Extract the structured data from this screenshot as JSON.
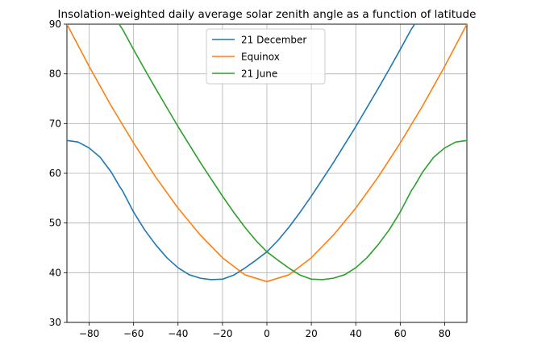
{
  "chart_data": {
    "type": "line",
    "title": "Insolation-weighted daily average solar zenith angle as a function of latitude",
    "xlabel": "",
    "ylabel": "",
    "xlim": [
      -90,
      90
    ],
    "ylim": [
      30,
      90
    ],
    "xticks": [
      -80,
      -60,
      -40,
      -20,
      0,
      20,
      40,
      60,
      80
    ],
    "xtick_labels": [
      "−80",
      "−60",
      "−40",
      "−20",
      "0",
      "20",
      "40",
      "60",
      "80"
    ],
    "yticks": [
      30,
      40,
      50,
      60,
      70,
      80,
      90
    ],
    "ytick_labels": [
      "30",
      "40",
      "50",
      "60",
      "70",
      "80",
      "90"
    ],
    "grid": true,
    "legend_position": "top-center",
    "series": [
      {
        "name": "21 December",
        "color": "#1f77b4",
        "x": [
          -90,
          -85,
          -80,
          -75,
          -70,
          -66.5,
          -65,
          -60,
          -55,
          -50,
          -45,
          -40,
          -35,
          -30,
          -25,
          -20,
          -15,
          -10,
          -5,
          0,
          5,
          10,
          15,
          20,
          25,
          30,
          35,
          40,
          45,
          50,
          55,
          60,
          65,
          66.5
        ],
        "y": [
          66.6,
          66.3,
          65.1,
          63.2,
          60.2,
          57.5,
          56.5,
          52.2,
          48.6,
          45.6,
          43.0,
          41.0,
          39.6,
          38.9,
          38.6,
          38.7,
          39.5,
          40.9,
          42.5,
          44.2,
          46.5,
          49.2,
          52.2,
          55.4,
          58.8,
          62.2,
          65.8,
          69.4,
          73.2,
          77.0,
          80.9,
          84.9,
          89.0,
          90.0
        ]
      },
      {
        "name": "Equinox",
        "color": "#ff7f0e",
        "x": [
          -90,
          -80,
          -70,
          -60,
          -50,
          -40,
          -30,
          -20,
          -10,
          0,
          10,
          20,
          30,
          40,
          50,
          60,
          70,
          80,
          90
        ],
        "y": [
          90.0,
          81.5,
          73.5,
          66.1,
          59.2,
          53.0,
          47.6,
          43.0,
          39.6,
          38.2,
          39.6,
          43.0,
          47.6,
          53.0,
          59.2,
          66.1,
          73.5,
          81.5,
          90.0
        ]
      },
      {
        "name": "21 June",
        "color": "#2ca02c",
        "x": [
          -66.5,
          -65,
          -60,
          -55,
          -50,
          -45,
          -40,
          -35,
          -30,
          -25,
          -20,
          -15,
          -10,
          -5,
          0,
          5,
          10,
          15,
          20,
          25,
          30,
          35,
          40,
          45,
          50,
          55,
          60,
          65,
          66.5,
          70,
          75,
          80,
          85,
          90
        ],
        "y": [
          90.0,
          89.0,
          84.9,
          80.9,
          77.0,
          73.2,
          69.4,
          65.8,
          62.2,
          58.8,
          55.4,
          52.2,
          49.2,
          46.5,
          44.2,
          42.5,
          40.9,
          39.5,
          38.7,
          38.6,
          38.9,
          39.6,
          41.0,
          43.0,
          45.6,
          48.6,
          52.2,
          56.5,
          57.5,
          60.2,
          63.2,
          65.1,
          66.3,
          66.6
        ]
      }
    ]
  }
}
